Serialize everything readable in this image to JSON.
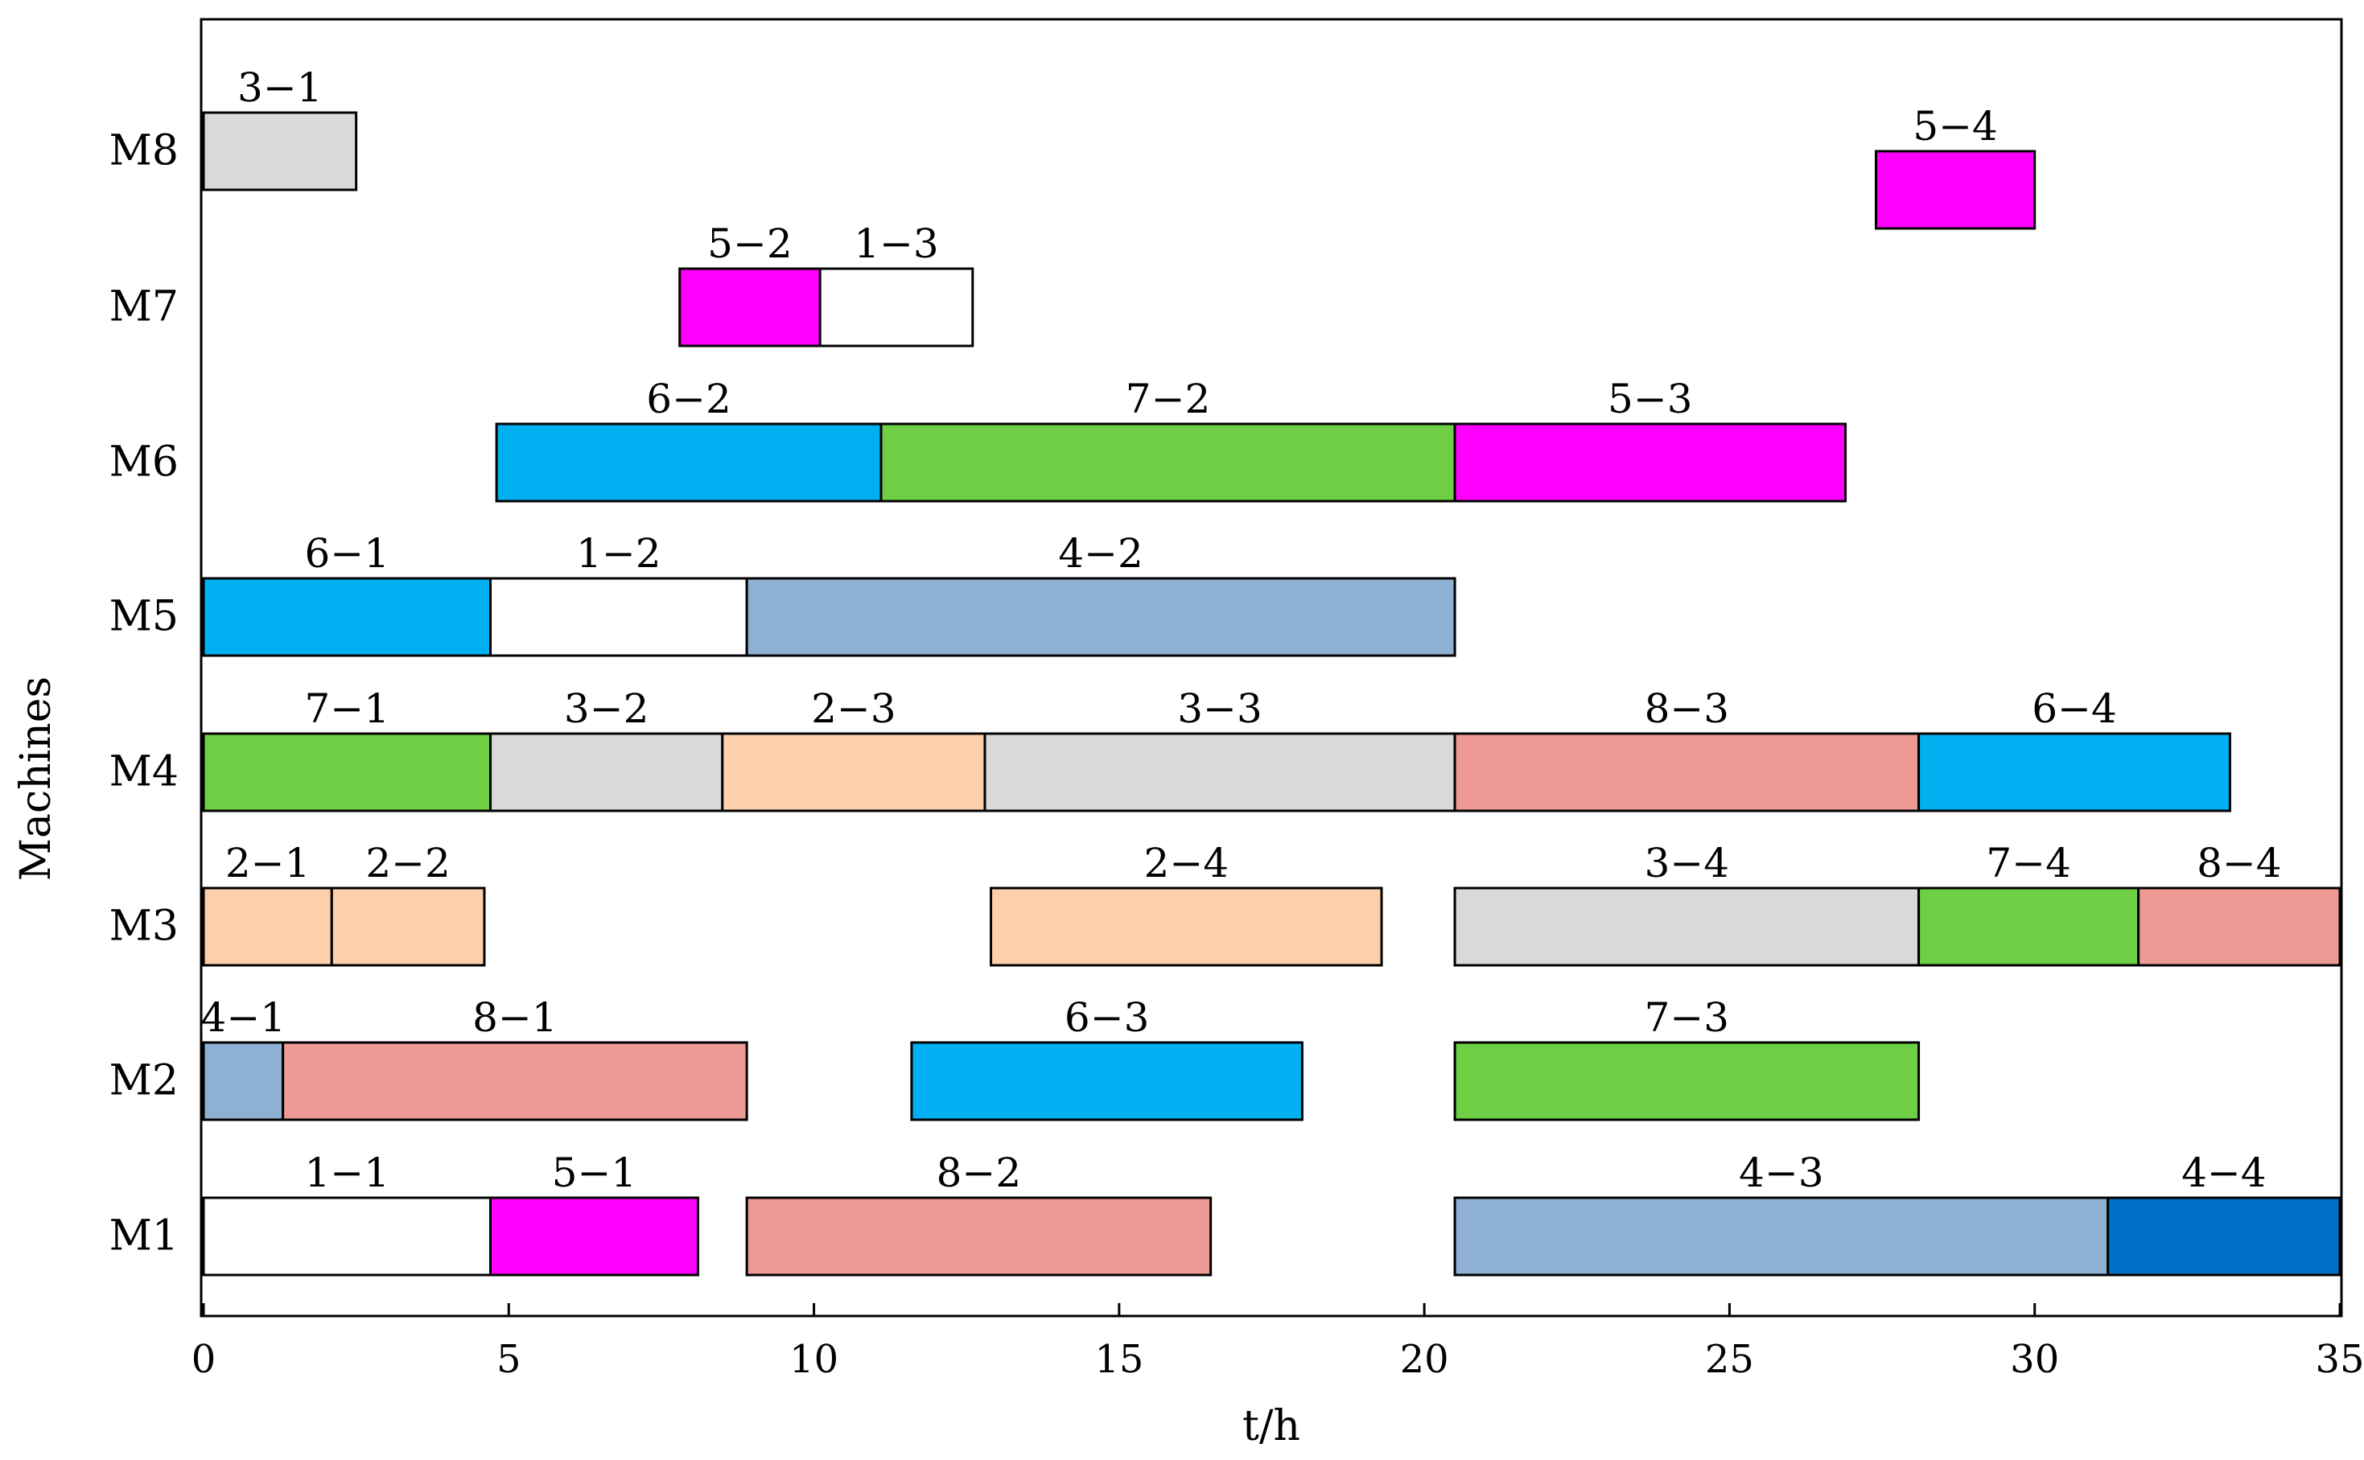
{
  "chart_data": {
    "type": "gantt",
    "xlabel": "t/h",
    "ylabel": "Machines",
    "xlim": [
      0,
      35
    ],
    "xticks": [
      0,
      5,
      10,
      15,
      20,
      25,
      30,
      35
    ],
    "machines": [
      "M1",
      "M2",
      "M3",
      "M4",
      "M5",
      "M6",
      "M7",
      "M8"
    ],
    "colors": {
      "job1": "#ffffff",
      "job2": "#fdd0ab",
      "job3": "#d9d9d9",
      "job4": "#8eb1d3",
      "job4_last": "#0070c8",
      "job5": "#ff00ff",
      "job6": "#00b0f0",
      "job7": "#6ecf44",
      "job8": "#ee9a94"
    },
    "tasks": [
      {
        "machine": "M8",
        "label": "3−1",
        "start": 0.0,
        "end": 2.5,
        "color": "#d9d9d9"
      },
      {
        "machine": "M8",
        "label": "5−4",
        "start": 27.4,
        "end": 30.0,
        "color": "#ff00ff"
      },
      {
        "machine": "M7",
        "label": "5−2",
        "start": 7.8,
        "end": 10.1,
        "color": "#ff00ff"
      },
      {
        "machine": "M7",
        "label": "1−3",
        "start": 10.1,
        "end": 12.6,
        "color": "#ffffff"
      },
      {
        "machine": "M6",
        "label": "6−2",
        "start": 4.8,
        "end": 11.1,
        "color": "#00b0f0"
      },
      {
        "machine": "M6",
        "label": "7−2",
        "start": 11.1,
        "end": 20.5,
        "color": "#6ecf44"
      },
      {
        "machine": "M6",
        "label": "5−3",
        "start": 20.5,
        "end": 26.9,
        "color": "#ff00ff"
      },
      {
        "machine": "M5",
        "label": "6−1",
        "start": 0.0,
        "end": 4.7,
        "color": "#00b0f0"
      },
      {
        "machine": "M5",
        "label": "1−2",
        "start": 4.7,
        "end": 8.9,
        "color": "#ffffff"
      },
      {
        "machine": "M5",
        "label": "4−2",
        "start": 8.9,
        "end": 20.5,
        "color": "#8eb1d3"
      },
      {
        "machine": "M4",
        "label": "7−1",
        "start": 0.0,
        "end": 4.7,
        "color": "#6ecf44"
      },
      {
        "machine": "M4",
        "label": "3−2",
        "start": 4.7,
        "end": 8.5,
        "color": "#d9d9d9"
      },
      {
        "machine": "M4",
        "label": "2−3",
        "start": 8.5,
        "end": 12.8,
        "color": "#fdd0ab"
      },
      {
        "machine": "M4",
        "label": "3−3",
        "start": 12.8,
        "end": 20.5,
        "color": "#d9d9d9"
      },
      {
        "machine": "M4",
        "label": "8−3",
        "start": 20.5,
        "end": 28.1,
        "color": "#ee9a94"
      },
      {
        "machine": "M4",
        "label": "6−4",
        "start": 28.1,
        "end": 33.2,
        "color": "#00b0f0"
      },
      {
        "machine": "M3",
        "label": "2−1",
        "start": 0.0,
        "end": 2.1,
        "color": "#fdd0ab"
      },
      {
        "machine": "M3",
        "label": "2−2",
        "start": 2.1,
        "end": 4.6,
        "color": "#fdd0ab"
      },
      {
        "machine": "M3",
        "label": "2−4",
        "start": 12.9,
        "end": 19.3,
        "color": "#fdd0ab"
      },
      {
        "machine": "M3",
        "label": "3−4",
        "start": 20.5,
        "end": 28.1,
        "color": "#d9d9d9"
      },
      {
        "machine": "M3",
        "label": "7−4",
        "start": 28.1,
        "end": 31.7,
        "color": "#6ecf44"
      },
      {
        "machine": "M3",
        "label": "8−4",
        "start": 31.7,
        "end": 35.0,
        "color": "#ee9a94"
      },
      {
        "machine": "M2",
        "label": "4−1",
        "start": 0.0,
        "end": 1.3,
        "color": "#8eb1d3"
      },
      {
        "machine": "M2",
        "label": "8−1",
        "start": 1.3,
        "end": 8.9,
        "color": "#ee9a94"
      },
      {
        "machine": "M2",
        "label": "6−3",
        "start": 11.6,
        "end": 18.0,
        "color": "#00b0f0"
      },
      {
        "machine": "M2",
        "label": "7−3",
        "start": 20.5,
        "end": 28.1,
        "color": "#6ecf44"
      },
      {
        "machine": "M1",
        "label": "1−1",
        "start": 0.0,
        "end": 4.7,
        "color": "#ffffff"
      },
      {
        "machine": "M1",
        "label": "5−1",
        "start": 4.7,
        "end": 8.1,
        "color": "#ff00ff"
      },
      {
        "machine": "M1",
        "label": "8−2",
        "start": 8.9,
        "end": 16.5,
        "color": "#ee9a94"
      },
      {
        "machine": "M1",
        "label": "4−3",
        "start": 20.5,
        "end": 31.2,
        "color": "#8eb1d3"
      },
      {
        "machine": "M1",
        "label": "4−4",
        "start": 31.2,
        "end": 35.0,
        "color": "#0070c8"
      }
    ]
  }
}
